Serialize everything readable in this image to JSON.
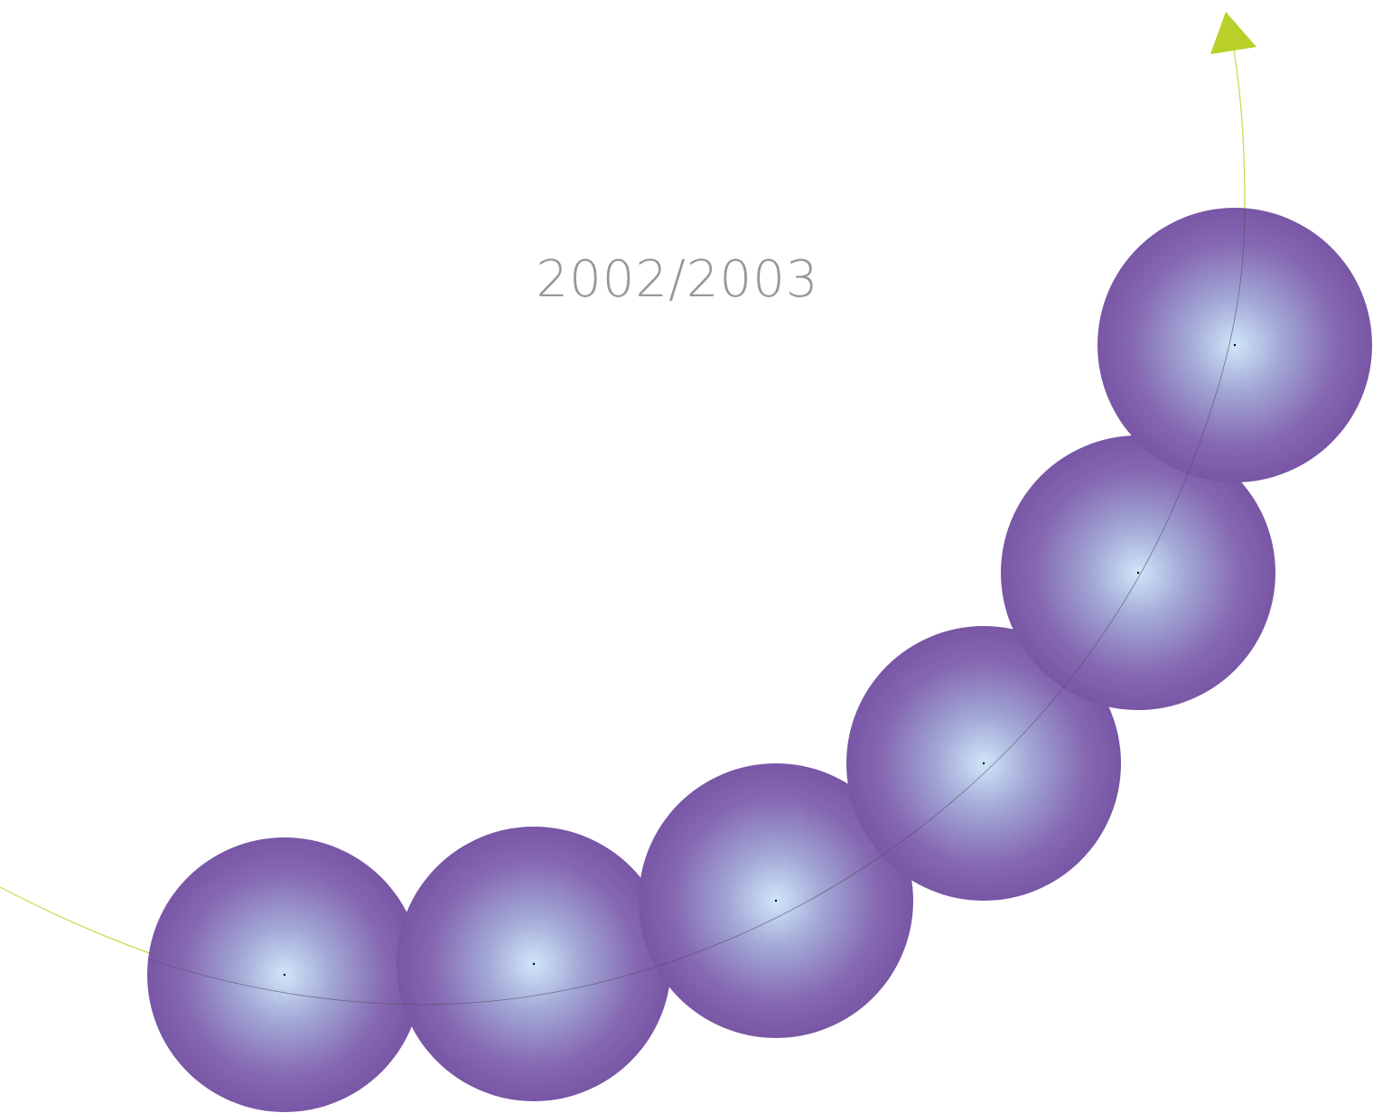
{
  "title": "2002/2003"
}
